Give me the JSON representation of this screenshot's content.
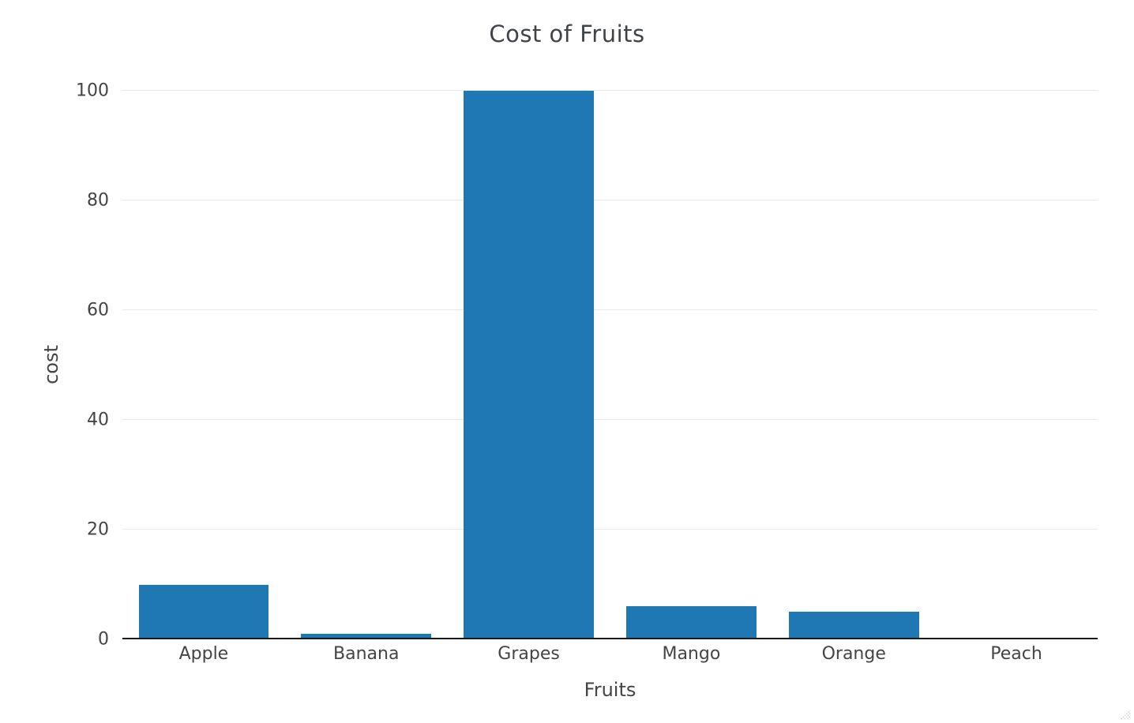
{
  "chart_data": {
    "type": "bar",
    "title": "Cost of Fruits",
    "xlabel": "Fruits",
    "ylabel": "cost",
    "categories": [
      "Apple",
      "Banana",
      "Grapes",
      "Mango",
      "Orange",
      "Peach"
    ],
    "values": [
      10,
      1,
      100,
      6,
      5,
      0.3
    ],
    "ylim": [
      0,
      100
    ],
    "yticks": [
      0,
      20,
      40,
      60,
      80,
      100
    ],
    "grid": true,
    "legend": false
  },
  "colors": {
    "bar": "#1f77b4",
    "grid": "#e8e8e8",
    "axis_line": "#1a1a1a",
    "text": "#444444",
    "title": "#404347"
  },
  "icons": {
    "resize_handle": "resize-grip-icon"
  }
}
